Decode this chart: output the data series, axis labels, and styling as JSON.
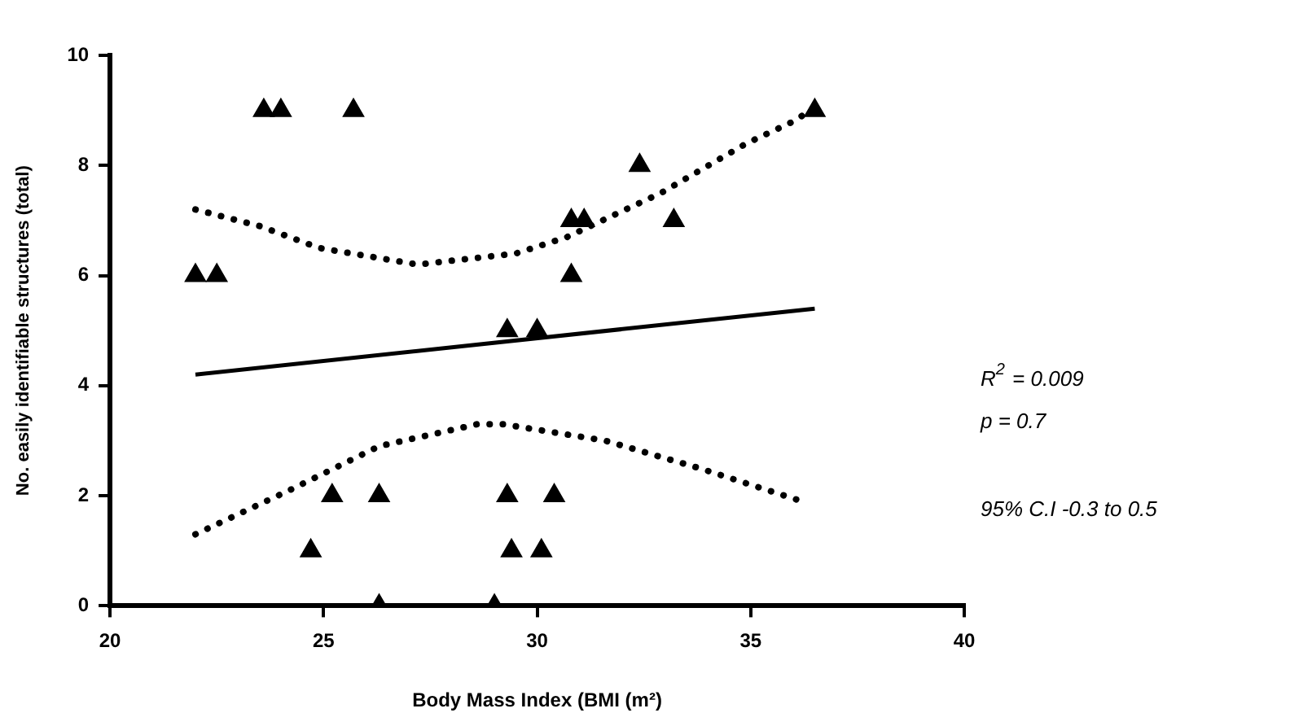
{
  "chart_data": {
    "type": "scatter",
    "xlabel": "Body Mass Index (BMI (m²)",
    "ylabel": "No. easily identifiable structures (total)",
    "xlim": [
      20,
      40
    ],
    "xticks": [
      20,
      25,
      30,
      35,
      40
    ],
    "ylim": [
      0,
      10
    ],
    "yticks": [
      0,
      2,
      4,
      6,
      8,
      10
    ],
    "grid": false,
    "legend": false,
    "series": [
      {
        "type": "scatter",
        "marker": "triangle",
        "color": "#000000",
        "x": [
          22.0,
          22.5,
          23.6,
          24.0,
          25.7,
          29.3,
          30.0,
          25.2,
          26.3,
          29.3,
          30.4,
          24.7,
          29.4,
          30.1,
          26.3,
          29.0,
          30.8,
          30.8,
          31.1,
          33.2,
          32.4,
          36.5
        ],
        "values": [
          6,
          6,
          9,
          9,
          9,
          5,
          5,
          2,
          2,
          2,
          2,
          1,
          1,
          1,
          0,
          0,
          6,
          7,
          7,
          7,
          8,
          9
        ]
      },
      {
        "type": "line",
        "marker": "none",
        "line_style": "solid",
        "color": "#000000",
        "x": [
          22.0,
          36.5
        ],
        "values": [
          4.2,
          5.4
        ]
      },
      {
        "type": "line",
        "marker": "none",
        "line_style": "dotted",
        "color": "#000000",
        "x": [
          22.0,
          23.5,
          24.9,
          27.2,
          29.5,
          30.7,
          32.9,
          34.9,
          36.0,
          36.2
        ],
        "values": [
          7.2,
          6.9,
          6.5,
          6.2,
          6.4,
          6.7,
          7.5,
          8.4,
          8.8,
          8.9
        ]
      },
      {
        "type": "line",
        "marker": "none",
        "line_style": "dotted",
        "color": "#000000",
        "x": [
          22.0,
          24.2,
          26.3,
          28.6,
          29.2,
          31.6,
          33.8,
          36.2
        ],
        "values": [
          1.3,
          2.1,
          2.9,
          3.3,
          3.3,
          3.0,
          2.5,
          1.9
        ]
      }
    ],
    "annotations": [
      "R$^{2}$ = 0.009",
      "p = 0.7",
      "95% C.I -0.3 to 0.5"
    ]
  }
}
